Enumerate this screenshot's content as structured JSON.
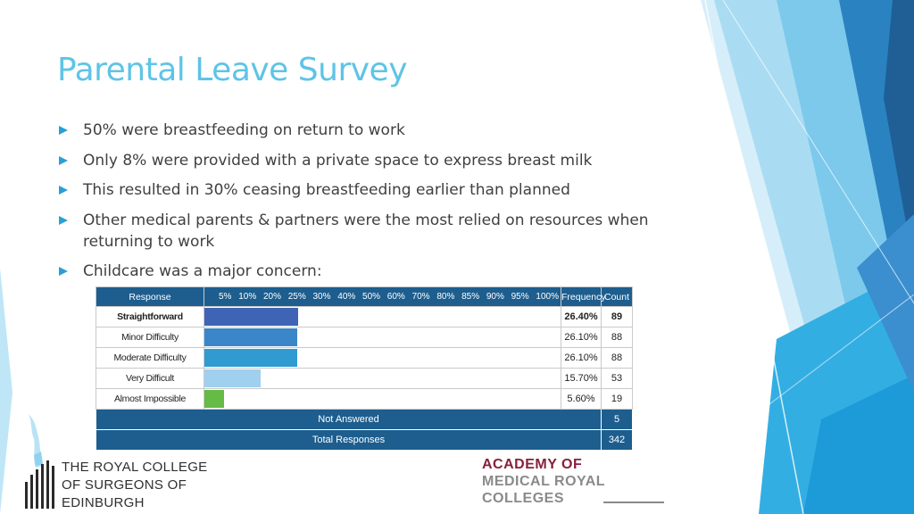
{
  "slide": {
    "title": "Parental Leave Survey",
    "bullets": [
      "50% were breastfeeding on return to work",
      "Only 8% were provided with a private space to express breast milk",
      "This resulted in 30% ceasing breastfeeding earlier than planned",
      "Other medical parents & partners were the most relied on resources when returning to work",
      "Childcare was a major concern:"
    ]
  },
  "table": {
    "headers": {
      "response": "Response",
      "frequency": "Frequency",
      "count": "Count"
    },
    "scale": [
      "5%",
      "10%",
      "20%",
      "25%",
      "30%",
      "40%",
      "50%",
      "60%",
      "70%",
      "80%",
      "85%",
      "90%",
      "95%",
      "100%"
    ],
    "rows": [
      {
        "response": "Straightforward",
        "frequency": "26.40%",
        "count": "89",
        "value": 26.4,
        "color": "#3f64b5",
        "bold": true
      },
      {
        "response": "Minor Difficulty",
        "frequency": "26.10%",
        "count": "88",
        "value": 26.1,
        "color": "#3a86c8",
        "bold": false
      },
      {
        "response": "Moderate Difficulty",
        "frequency": "26.10%",
        "count": "88",
        "value": 26.1,
        "color": "#2f9bd0",
        "bold": false
      },
      {
        "response": "Very Difficult",
        "frequency": "15.70%",
        "count": "53",
        "value": 15.7,
        "color": "#9fd0ee",
        "bold": false
      },
      {
        "response": "Almost Impossible",
        "frequency": "5.60%",
        "count": "19",
        "value": 5.6,
        "color": "#66bb46",
        "bold": false
      }
    ],
    "not_answered": {
      "label": "Not Answered",
      "count": "5"
    },
    "total": {
      "label": "Total Responses",
      "count": "342"
    }
  },
  "logos": {
    "rcs": [
      "THE ROYAL COLLEGE",
      "OF SURGEONS OF",
      "EDINBURGH"
    ],
    "amrc": [
      "ACADEMY OF",
      "MEDICAL ROYAL",
      "COLLEGES"
    ]
  },
  "colors": {
    "title": "#5ec4e6",
    "bullet": "#2a9fd6",
    "header": "#1d5e8e"
  }
}
